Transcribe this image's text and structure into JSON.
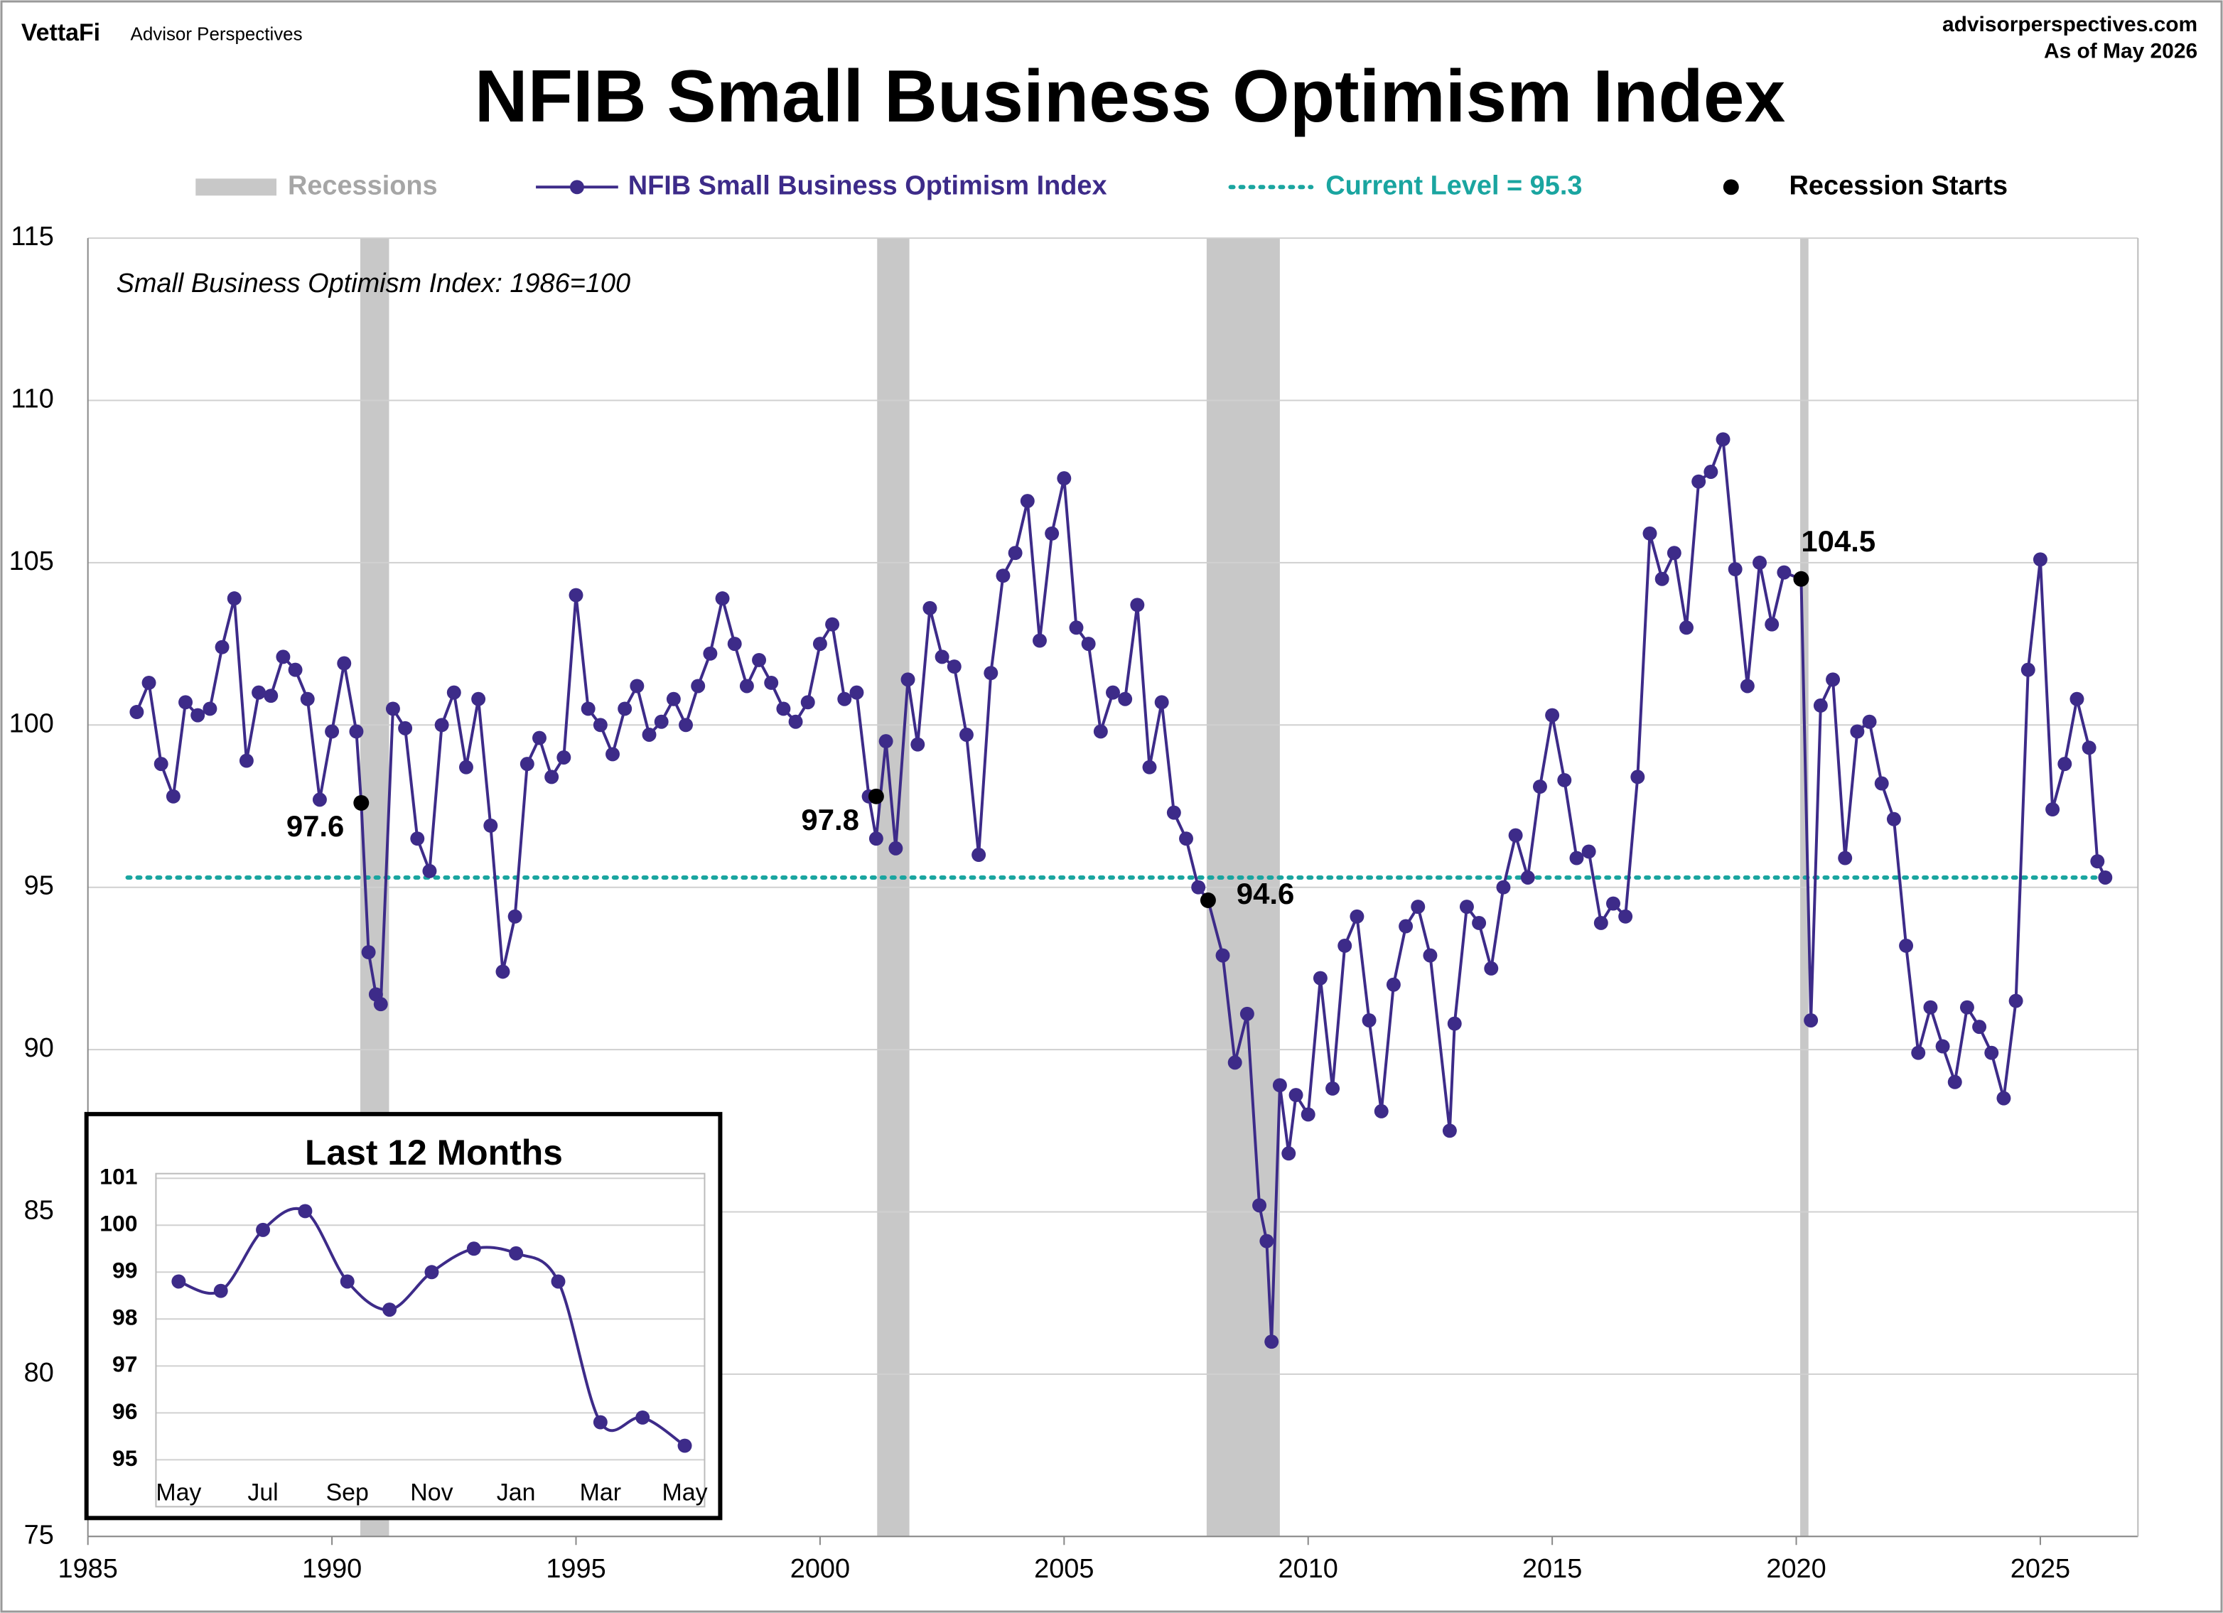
{
  "header": {
    "brand": "VettaFi",
    "brand_sub": "Advisor Perspectives",
    "site": "advisorperspectives.com",
    "as_of": "As of May 2026"
  },
  "chart_data": [
    {
      "type": "line",
      "title": "NFIB Small Business Optimism Index",
      "subtitle": "Small Business Optimism Index: 1986=100",
      "xlim": [
        1985,
        2027
      ],
      "xticks": [
        1985,
        1990,
        1995,
        2000,
        2005,
        2010,
        2015,
        2020,
        2025
      ],
      "ylim": [
        75,
        115
      ],
      "yticks": [
        75,
        80,
        85,
        90,
        95,
        100,
        105,
        110,
        115
      ],
      "grid": true,
      "recessions": {
        "name": "Recessions",
        "color": "#c8c8c8",
        "spans": [
          [
            1990.58,
            1991.17
          ],
          [
            2001.17,
            2001.83
          ],
          [
            2007.92,
            2009.42
          ],
          [
            2020.08,
            2020.25
          ]
        ]
      },
      "reference_line": {
        "name": "Current Level = 95.3",
        "value": 95.3,
        "color": "#1aa5a0"
      },
      "recession_starts": {
        "name": "Recession Starts",
        "color": "#000000",
        "x": [
          1990.6,
          2001.15,
          2007.95,
          2020.1
        ],
        "values": [
          97.6,
          97.8,
          94.6,
          104.5
        ]
      },
      "series": [
        {
          "name": "NFIB Small Business Optimism Index",
          "color": "#3d2b89",
          "x": [
            1986.0,
            1986.25,
            1986.5,
            1986.75,
            1987.0,
            1987.25,
            1987.5,
            1987.75,
            1988.0,
            1988.25,
            1988.5,
            1988.75,
            1989.0,
            1989.25,
            1989.5,
            1989.75,
            1990.0,
            1990.25,
            1990.5,
            1990.6,
            1990.75,
            1990.9,
            1991.0,
            1991.25,
            1991.5,
            1991.75,
            1992.0,
            1992.25,
            1992.5,
            1992.75,
            1993.0,
            1993.25,
            1993.5,
            1993.75,
            1994.0,
            1994.25,
            1994.5,
            1994.75,
            1995.0,
            1995.25,
            1995.5,
            1995.75,
            1996.0,
            1996.25,
            1996.5,
            1996.75,
            1997.0,
            1997.25,
            1997.5,
            1997.75,
            1998.0,
            1998.25,
            1998.5,
            1998.75,
            1999.0,
            1999.25,
            1999.5,
            1999.75,
            2000.0,
            2000.25,
            2000.5,
            2000.75,
            2001.0,
            2001.15,
            2001.35,
            2001.55,
            2001.8,
            2002.0,
            2002.25,
            2002.5,
            2002.75,
            2003.0,
            2003.25,
            2003.5,
            2003.75,
            2004.0,
            2004.25,
            2004.5,
            2004.75,
            2005.0,
            2005.25,
            2005.5,
            2005.75,
            2006.0,
            2006.25,
            2006.5,
            2006.75,
            2007.0,
            2007.25,
            2007.5,
            2007.75,
            2007.95,
            2008.25,
            2008.5,
            2008.75,
            2009.0,
            2009.15,
            2009.25,
            2009.42,
            2009.6,
            2009.75,
            2010.0,
            2010.25,
            2010.5,
            2010.75,
            2011.0,
            2011.25,
            2011.5,
            2011.75,
            2012.0,
            2012.25,
            2012.5,
            2012.9,
            2013.0,
            2013.25,
            2013.5,
            2013.75,
            2014.0,
            2014.25,
            2014.5,
            2014.75,
            2015.0,
            2015.25,
            2015.5,
            2015.75,
            2016.0,
            2016.25,
            2016.5,
            2016.75,
            2017.0,
            2017.25,
            2017.5,
            2017.75,
            2018.0,
            2018.25,
            2018.5,
            2018.75,
            2019.0,
            2019.25,
            2019.5,
            2019.75,
            2020.1,
            2020.3,
            2020.5,
            2020.75,
            2021.0,
            2021.25,
            2021.5,
            2021.75,
            2022.0,
            2022.25,
            2022.5,
            2022.75,
            2023.0,
            2023.25,
            2023.5,
            2023.75,
            2024.0,
            2024.25,
            2024.5,
            2024.75,
            2025.0,
            2025.25,
            2025.5,
            2025.75,
            2026.0,
            2026.17,
            2026.33
          ],
          "values": [
            100.4,
            101.3,
            98.8,
            97.8,
            100.7,
            100.3,
            100.5,
            102.4,
            103.9,
            98.9,
            101.0,
            100.9,
            102.1,
            101.7,
            100.8,
            97.7,
            99.8,
            101.9,
            99.8,
            97.6,
            93.0,
            91.7,
            91.4,
            100.5,
            99.9,
            96.5,
            95.5,
            100.0,
            101.0,
            98.7,
            100.8,
            96.9,
            92.4,
            94.1,
            98.8,
            99.6,
            98.4,
            99.0,
            104.0,
            100.5,
            100.0,
            99.1,
            100.5,
            101.2,
            99.7,
            100.1,
            100.8,
            100.0,
            101.2,
            102.2,
            103.9,
            102.5,
            101.2,
            102.0,
            101.3,
            100.5,
            100.1,
            100.7,
            102.5,
            103.1,
            100.8,
            101.0,
            97.8,
            96.5,
            99.5,
            96.2,
            101.4,
            99.4,
            103.6,
            102.1,
            101.8,
            99.7,
            96.0,
            101.6,
            104.6,
            105.3,
            106.9,
            102.6,
            105.9,
            107.6,
            103.0,
            102.5,
            99.8,
            101.0,
            100.8,
            103.7,
            98.7,
            100.7,
            97.3,
            96.5,
            95.0,
            94.6,
            92.9,
            89.6,
            91.1,
            85.2,
            84.1,
            81.0,
            88.9,
            86.8,
            88.6,
            88.0,
            92.2,
            88.8,
            93.2,
            94.1,
            90.9,
            88.1,
            92.0,
            93.8,
            94.4,
            92.9,
            87.5,
            90.8,
            94.4,
            93.9,
            92.5,
            95.0,
            96.6,
            95.3,
            98.1,
            100.3,
            98.3,
            95.9,
            96.1,
            93.9,
            94.5,
            94.1,
            98.4,
            105.9,
            104.5,
            105.3,
            103.0,
            107.5,
            107.8,
            108.8,
            104.8,
            101.2,
            105.0,
            103.1,
            104.7,
            104.5,
            90.9,
            100.6,
            101.4,
            95.9,
            99.8,
            100.1,
            98.2,
            97.1,
            93.2,
            89.9,
            91.3,
            90.1,
            89.0,
            91.3,
            90.7,
            89.9,
            88.5,
            91.5,
            101.7,
            105.1,
            97.4,
            98.8,
            100.8,
            99.3,
            95.8,
            95.3
          ]
        }
      ],
      "legend": "top"
    },
    {
      "type": "line",
      "title": "Last 12 Months",
      "categories": [
        "May",
        null,
        "Jul",
        null,
        "Sep",
        null,
        "Nov",
        null,
        "Jan",
        null,
        "Mar",
        null,
        "May"
      ],
      "ylim": [
        94,
        101.1
      ],
      "yticks": [
        95,
        96,
        97,
        98,
        99,
        100,
        101
      ],
      "series": [
        {
          "color": "#3d2b89",
          "values": [
            98.8,
            98.6,
            99.9,
            100.3,
            98.8,
            98.2,
            99.0,
            99.5,
            99.4,
            98.8,
            95.8,
            95.9,
            95.3
          ]
        }
      ]
    }
  ]
}
